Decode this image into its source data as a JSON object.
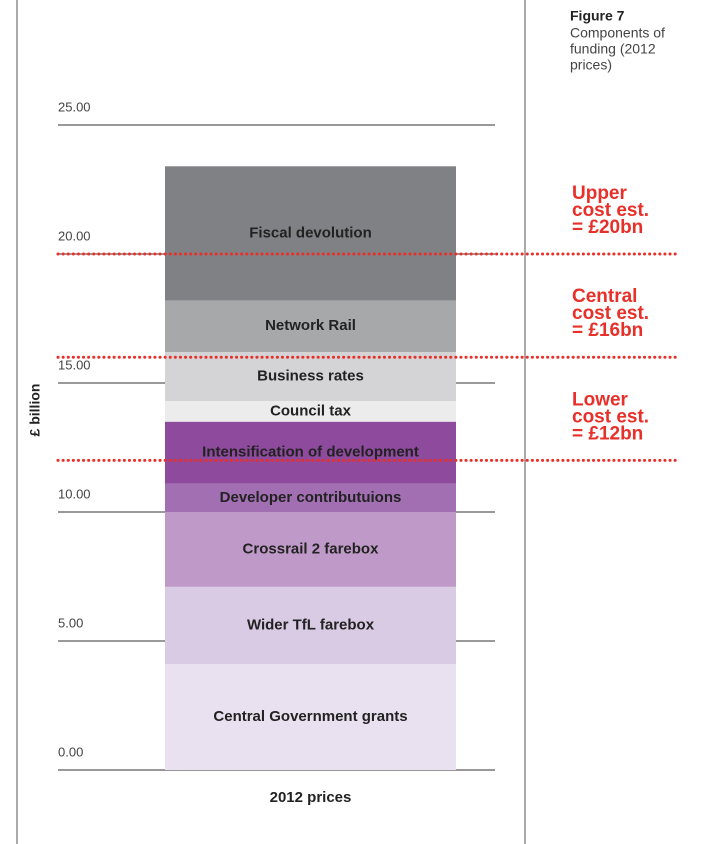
{
  "chart_data": {
    "type": "stacked_bar",
    "title": "Figure 7",
    "subtitle": [
      "Components of",
      "funding (2012",
      "prices)"
    ],
    "ylabel": "£ billion",
    "categories": [
      "2012 prices"
    ],
    "ylim": [
      0,
      25
    ],
    "yticks": [
      {
        "value": 0,
        "label": "0.00"
      },
      {
        "value": 5,
        "label": "5.00"
      },
      {
        "value": 10,
        "label": "10.00"
      },
      {
        "value": 15,
        "label": "15.00"
      },
      {
        "value": 20,
        "label": "20.00"
      },
      {
        "value": 25,
        "label": "25.00"
      }
    ],
    "grid": true,
    "series": [
      {
        "name": "Central Government grants",
        "color": "#e9e1ef",
        "values": [
          4.1
        ]
      },
      {
        "name": "Wider TfL farebox",
        "color": "#dacbe4",
        "values": [
          3.0
        ]
      },
      {
        "name": "Crossrail 2 farebox",
        "color": "#bf9ac8",
        "values": [
          2.9
        ]
      },
      {
        "name": "Developer contributuions",
        "color": "#a36fb3",
        "values": [
          1.1
        ]
      },
      {
        "name": "Intensification of development",
        "color": "#8e4a9d",
        "values": [
          2.4
        ]
      },
      {
        "name": "Council tax",
        "color": "#ececec",
        "values": [
          0.8
        ]
      },
      {
        "name": "Business rates",
        "color": "#d4d4d6",
        "values": [
          1.9
        ]
      },
      {
        "name": "Network Rail",
        "color": "#a7a8aa",
        "values": [
          2.0
        ]
      },
      {
        "name": "Fiscal devolution",
        "color": "#808184",
        "values": [
          5.2
        ]
      }
    ],
    "reference_lines": [
      {
        "value": 20,
        "color": "#e8302a",
        "lines": [
          "Upper",
          "cost est.",
          "= £20bn"
        ]
      },
      {
        "value": 16,
        "color": "#e8302a",
        "lines": [
          "Central",
          "cost est.",
          "= £16bn"
        ]
      },
      {
        "value": 12,
        "color": "#e8302a",
        "lines": [
          "Lower",
          "cost est.",
          "= £12bn"
        ]
      }
    ]
  }
}
